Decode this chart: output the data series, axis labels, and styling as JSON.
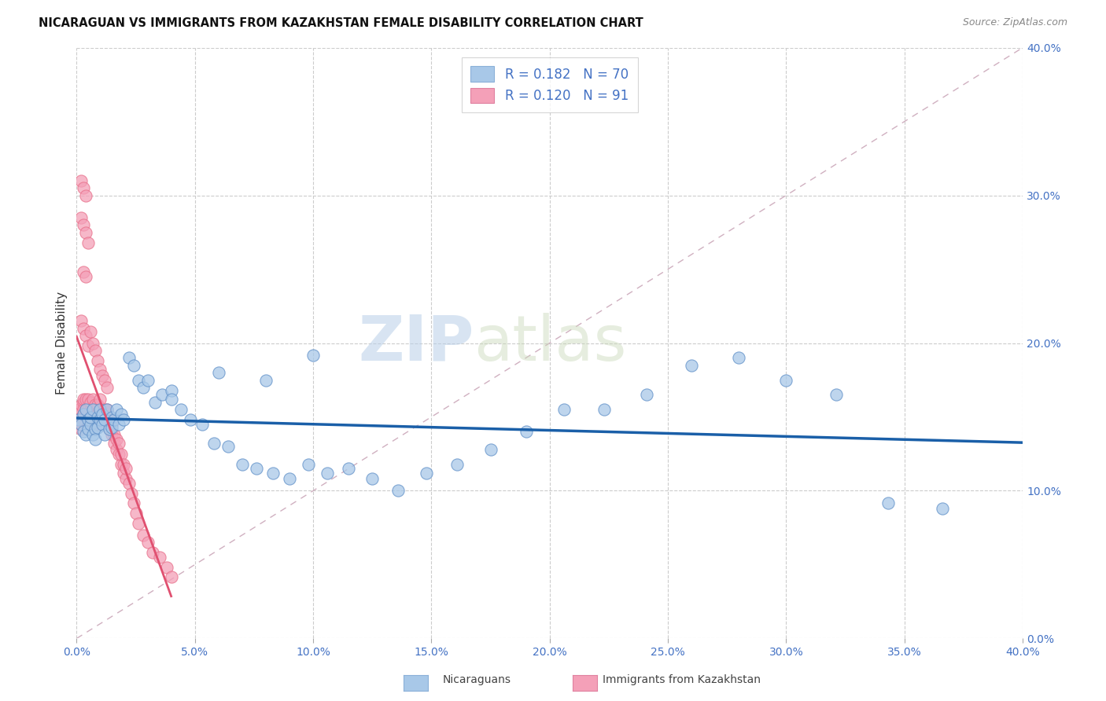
{
  "title": "NICARAGUAN VS IMMIGRANTS FROM KAZAKHSTAN FEMALE DISABILITY CORRELATION CHART",
  "source": "Source: ZipAtlas.com",
  "ylabel": "Female Disability",
  "xlim": [
    0.0,
    0.4
  ],
  "ylim": [
    0.0,
    0.4
  ],
  "xticks": [
    0.0,
    0.05,
    0.1,
    0.15,
    0.2,
    0.25,
    0.3,
    0.35,
    0.4
  ],
  "yticks": [
    0.0,
    0.1,
    0.2,
    0.3,
    0.4
  ],
  "legend_r1": "R = 0.182",
  "legend_n1": "N = 70",
  "legend_r2": "R = 0.120",
  "legend_n2": "N = 91",
  "color_blue": "#a8c8e8",
  "color_pink": "#f4a0b8",
  "color_line_blue": "#1a5fa8",
  "color_line_pink": "#e05070",
  "color_diag": "#d0b0c0",
  "watermark_zip": "ZIP",
  "watermark_atlas": "atlas",
  "legend_label1": "Nicaraguans",
  "legend_label2": "Immigrants from Kazakhstan",
  "blue_x": [
    0.001,
    0.002,
    0.003,
    0.003,
    0.004,
    0.004,
    0.005,
    0.005,
    0.006,
    0.006,
    0.007,
    0.007,
    0.008,
    0.008,
    0.009,
    0.009,
    0.01,
    0.01,
    0.011,
    0.011,
    0.012,
    0.012,
    0.013,
    0.014,
    0.015,
    0.015,
    0.016,
    0.017,
    0.018,
    0.019,
    0.02,
    0.022,
    0.024,
    0.026,
    0.028,
    0.03,
    0.033,
    0.036,
    0.04,
    0.044,
    0.048,
    0.053,
    0.058,
    0.064,
    0.07,
    0.076,
    0.083,
    0.09,
    0.098,
    0.106,
    0.115,
    0.125,
    0.136,
    0.148,
    0.161,
    0.175,
    0.19,
    0.206,
    0.223,
    0.241,
    0.26,
    0.28,
    0.3,
    0.321,
    0.343,
    0.366,
    0.04,
    0.06,
    0.08,
    0.1
  ],
  "blue_y": [
    0.148,
    0.145,
    0.152,
    0.14,
    0.138,
    0.155,
    0.142,
    0.148,
    0.145,
    0.15,
    0.138,
    0.155,
    0.142,
    0.135,
    0.15,
    0.143,
    0.148,
    0.155,
    0.145,
    0.152,
    0.148,
    0.138,
    0.155,
    0.142,
    0.15,
    0.143,
    0.148,
    0.155,
    0.145,
    0.152,
    0.148,
    0.19,
    0.185,
    0.175,
    0.17,
    0.175,
    0.16,
    0.165,
    0.168,
    0.155,
    0.148,
    0.145,
    0.132,
    0.13,
    0.118,
    0.115,
    0.112,
    0.108,
    0.118,
    0.112,
    0.115,
    0.108,
    0.1,
    0.112,
    0.118,
    0.128,
    0.14,
    0.155,
    0.155,
    0.165,
    0.185,
    0.19,
    0.175,
    0.165,
    0.092,
    0.088,
    0.162,
    0.18,
    0.175,
    0.192
  ],
  "pink_x": [
    0.001,
    0.001,
    0.002,
    0.002,
    0.002,
    0.002,
    0.003,
    0.003,
    0.003,
    0.003,
    0.003,
    0.004,
    0.004,
    0.004,
    0.004,
    0.004,
    0.005,
    0.005,
    0.005,
    0.005,
    0.005,
    0.006,
    0.006,
    0.006,
    0.006,
    0.007,
    0.007,
    0.007,
    0.008,
    0.008,
    0.008,
    0.009,
    0.009,
    0.009,
    0.01,
    0.01,
    0.01,
    0.011,
    0.011,
    0.012,
    0.012,
    0.013,
    0.013,
    0.014,
    0.014,
    0.015,
    0.015,
    0.016,
    0.016,
    0.017,
    0.017,
    0.018,
    0.018,
    0.019,
    0.019,
    0.02,
    0.02,
    0.021,
    0.021,
    0.022,
    0.023,
    0.024,
    0.025,
    0.026,
    0.028,
    0.03,
    0.032,
    0.035,
    0.038,
    0.04,
    0.002,
    0.003,
    0.004,
    0.005,
    0.006,
    0.007,
    0.008,
    0.009,
    0.01,
    0.011,
    0.012,
    0.013,
    0.003,
    0.004,
    0.002,
    0.003,
    0.004,
    0.005,
    0.002,
    0.003,
    0.004
  ],
  "pink_y": [
    0.148,
    0.155,
    0.142,
    0.15,
    0.158,
    0.145,
    0.152,
    0.16,
    0.148,
    0.155,
    0.162,
    0.148,
    0.155,
    0.162,
    0.145,
    0.152,
    0.148,
    0.155,
    0.162,
    0.145,
    0.152,
    0.155,
    0.148,
    0.16,
    0.145,
    0.148,
    0.155,
    0.162,
    0.145,
    0.152,
    0.158,
    0.145,
    0.152,
    0.158,
    0.148,
    0.155,
    0.162,
    0.145,
    0.152,
    0.148,
    0.155,
    0.148,
    0.155,
    0.142,
    0.148,
    0.138,
    0.145,
    0.132,
    0.138,
    0.128,
    0.135,
    0.125,
    0.132,
    0.118,
    0.125,
    0.112,
    0.118,
    0.108,
    0.115,
    0.105,
    0.098,
    0.092,
    0.085,
    0.078,
    0.07,
    0.065,
    0.058,
    0.055,
    0.048,
    0.042,
    0.215,
    0.21,
    0.205,
    0.198,
    0.208,
    0.2,
    0.195,
    0.188,
    0.182,
    0.178,
    0.175,
    0.17,
    0.248,
    0.245,
    0.285,
    0.28,
    0.275,
    0.268,
    0.31,
    0.305,
    0.3
  ]
}
